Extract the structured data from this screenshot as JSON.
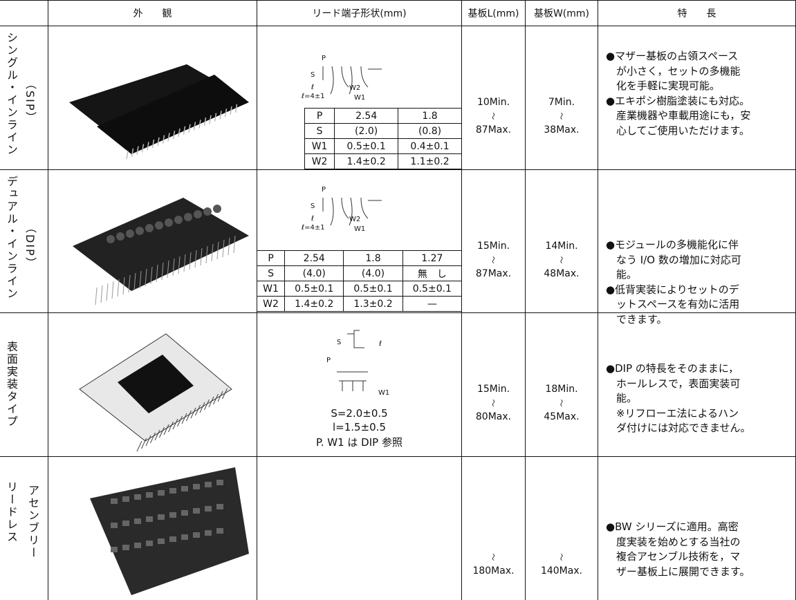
{
  "header": [
    "外　　観",
    "リード端子形状(mm)",
    "基板L(mm)",
    "基板W(mm)",
    "特　　長"
  ],
  "rows": [
    {
      "label": [
        "シングル・インライン",
        "（SIP）"
      ],
      "diagram": [
        "P",
        "S",
        "ℓ",
        "W2",
        "ℓ=4±1",
        "W1"
      ],
      "table": [
        [
          "P",
          "2.54",
          "1.8"
        ],
        [
          "S",
          "(2.0)",
          "(0.8)"
        ],
        [
          "W1",
          "0.5±0.1",
          "0.4±0.1"
        ],
        [
          "W2",
          "1.4±0.2",
          "1.1±0.2"
        ]
      ],
      "board_l": [
        "10Min.",
        "〜",
        "87Max."
      ],
      "board_w": [
        "7Min.",
        "〜",
        "38Max."
      ],
      "features": [
        "●マザー基板の占領スペース",
        "　が小さく，セットの多機能",
        "　化を手軽に実現可能。",
        "●エキポシ樹脂塗装にも対応。",
        "　産業機器や車載用途にも，安",
        "　心してご使用いただけます。"
      ]
    },
    {
      "label": [
        "デュアル・インライン",
        "（DIP）"
      ],
      "diagram": [
        "P",
        "S",
        "ℓ",
        "W2",
        "ℓ=4±1",
        "W1"
      ],
      "table": [
        [
          "P",
          "2.54",
          "1.8",
          "1.27"
        ],
        [
          "S",
          "(4.0)",
          "(4.0)",
          "無　し"
        ],
        [
          "W1",
          "0.5±0.1",
          "0.5±0.1",
          "0.5±0.1"
        ],
        [
          "W2",
          "1.4±0.2",
          "1.3±0.2",
          "—"
        ]
      ],
      "board_l": [
        "15Min.",
        "〜",
        "87Max."
      ],
      "board_w": [
        "14Min.",
        "〜",
        "48Max."
      ],
      "features": [
        "●モジュールの多機能化に伴",
        "　なう I/O 数の増加に対応可",
        "　能。",
        "●低背実装によりセットのデ",
        "　ットスペースを有効に活用",
        "　できます。"
      ]
    },
    {
      "label": [
        "表面実装タイプ"
      ],
      "diagram": [
        "S",
        "ℓ",
        "P",
        "W1"
      ],
      "notes": [
        "S=2.0±0.5",
        "l=1.5±0.5",
        "P. W1 は DIP 参照"
      ],
      "board_l": [
        "15Min.",
        "〜",
        "80Max."
      ],
      "board_w": [
        "18Min.",
        "〜",
        "45Max."
      ],
      "features": [
        "●DIP の特長をそのままに，",
        "　ホールレスで，表面実装可",
        "　能。",
        "　※リフローエ法によるハン",
        "　ダ付けには対応できません。"
      ]
    },
    {
      "label": [
        "リードレス",
        "アセンブリー"
      ],
      "board_l": [
        "〜",
        "180Max."
      ],
      "board_w": [
        "〜",
        "140Max."
      ],
      "features": [
        "●BW シリーズに適用。高密",
        "　度実装を始めとする当社の",
        "　複合アセンブル技術を，マ",
        "　ザー基板上に展開できます。"
      ]
    }
  ]
}
